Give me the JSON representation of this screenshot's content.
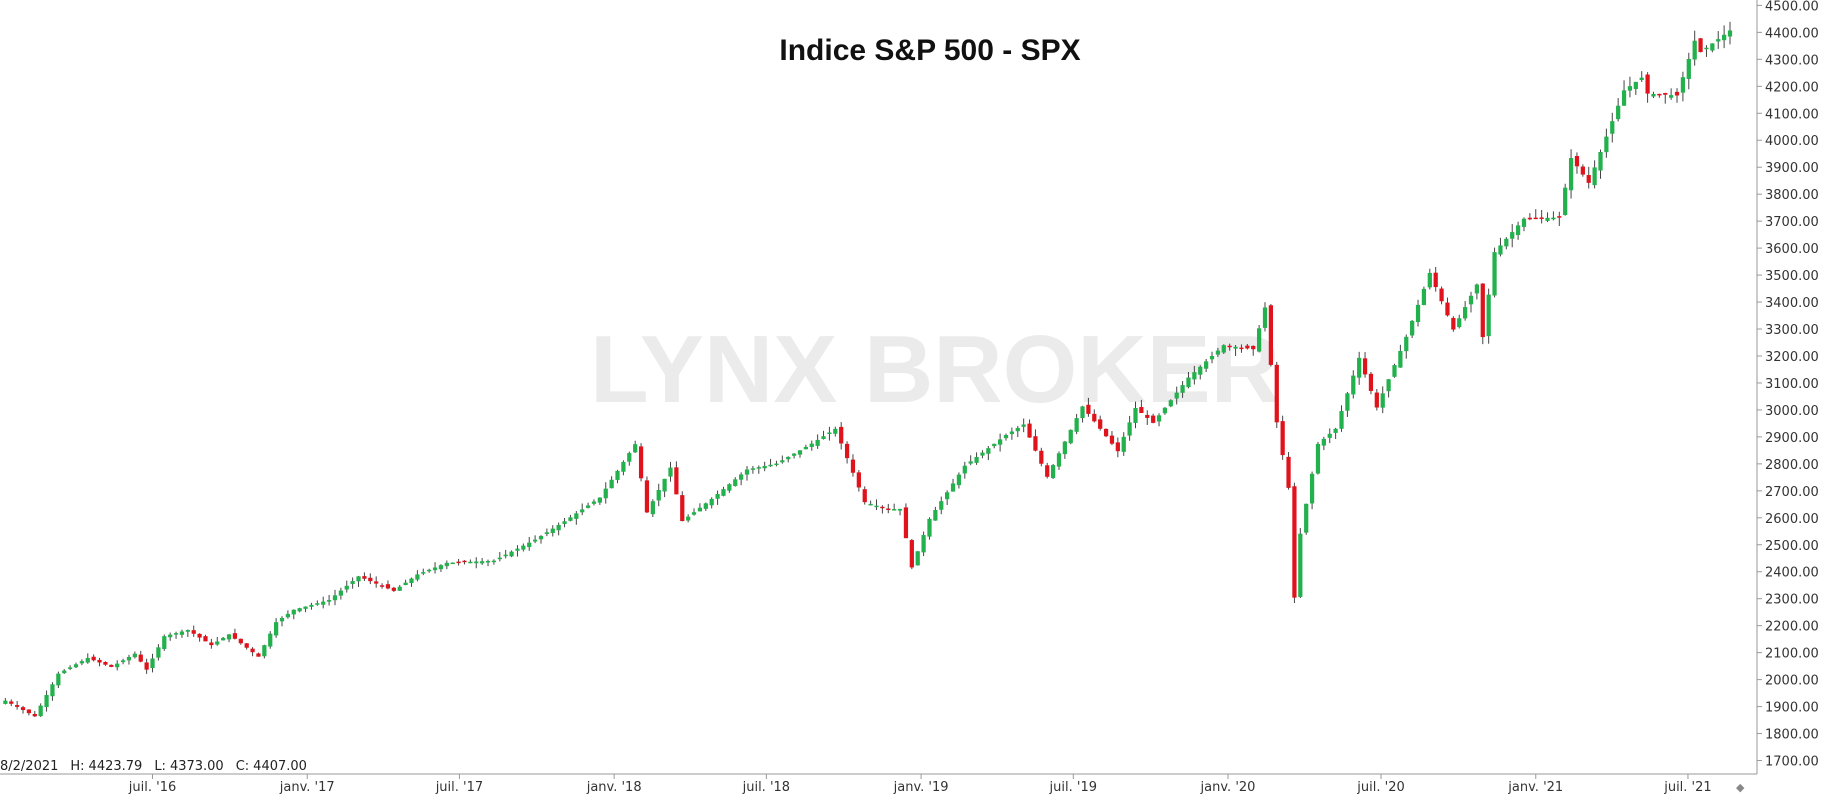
{
  "chart_data": {
    "type": "candlestick",
    "title": "Indice S&P 500 - SPX",
    "watermark": "LYNX BROKER",
    "info": {
      "date": "8/2/2021",
      "high_label": "H:",
      "high": "4423.79",
      "low_label": "L:",
      "low": "4373.00",
      "close_label": "C:",
      "close": "4407.00"
    },
    "ylim": [
      1650,
      4520
    ],
    "y_ticks": [
      "1700.00",
      "1800.00",
      "1900.00",
      "2000.00",
      "2100.00",
      "2200.00",
      "2300.00",
      "2400.00",
      "2500.00",
      "2600.00",
      "2700.00",
      "2800.00",
      "2900.00",
      "3000.00",
      "3100.00",
      "3200.00",
      "3300.00",
      "3400.00",
      "3500.00",
      "3600.00",
      "3700.00",
      "3800.00",
      "3900.00",
      "4000.00",
      "4100.00",
      "4200.00",
      "4300.00",
      "4400.00",
      "4500.00"
    ],
    "x_range": [
      "2016-01-04",
      "2021-08-20"
    ],
    "x_ticks": [
      {
        "date": "2016-07-01",
        "label": "juil. '16"
      },
      {
        "date": "2017-01-01",
        "label": "janv. '17"
      },
      {
        "date": "2017-07-01",
        "label": "juil. '17"
      },
      {
        "date": "2018-01-01",
        "label": "janv. '18"
      },
      {
        "date": "2018-07-01",
        "label": "juil. '18"
      },
      {
        "date": "2019-01-01",
        "label": "janv. '19"
      },
      {
        "date": "2019-07-01",
        "label": "juil. '19"
      },
      {
        "date": "2020-01-01",
        "label": "janv. '20"
      },
      {
        "date": "2020-07-01",
        "label": "juil. '20"
      },
      {
        "date": "2021-01-01",
        "label": "janv. '21"
      },
      {
        "date": "2021-07-01",
        "label": "juil. '21"
      }
    ],
    "colors": {
      "up": "#22b14c",
      "down": "#e0131c",
      "axis": "#999999",
      "wick": "#444444"
    },
    "weekly_close": [
      [
        "2016-01-08",
        1922
      ],
      [
        "2016-02-12",
        1864
      ],
      [
        "2016-03-11",
        2022
      ],
      [
        "2016-04-15",
        2080
      ],
      [
        "2016-05-13",
        2047
      ],
      [
        "2016-06-10",
        2096
      ],
      [
        "2016-06-24",
        2037
      ],
      [
        "2016-07-15",
        2161
      ],
      [
        "2016-08-12",
        2184
      ],
      [
        "2016-09-09",
        2128
      ],
      [
        "2016-09-30",
        2168
      ],
      [
        "2016-11-04",
        2085
      ],
      [
        "2016-11-25",
        2213
      ],
      [
        "2016-12-16",
        2259
      ],
      [
        "2017-01-27",
        2295
      ],
      [
        "2017-03-03",
        2383
      ],
      [
        "2017-04-14",
        2329
      ],
      [
        "2017-05-12",
        2390
      ],
      [
        "2017-06-16",
        2433
      ],
      [
        "2017-08-11",
        2441
      ],
      [
        "2017-09-29",
        2519
      ],
      [
        "2017-11-03",
        2587
      ],
      [
        "2017-12-15",
        2675
      ],
      [
        "2018-01-26",
        2873
      ],
      [
        "2018-02-09",
        2620
      ],
      [
        "2018-03-09",
        2786
      ],
      [
        "2018-03-23",
        2588
      ],
      [
        "2018-04-27",
        2670
      ],
      [
        "2018-06-08",
        2779
      ],
      [
        "2018-07-13",
        2801
      ],
      [
        "2018-08-24",
        2875
      ],
      [
        "2018-09-21",
        2930
      ],
      [
        "2018-10-12",
        2767
      ],
      [
        "2018-10-26",
        2658
      ],
      [
        "2018-11-23",
        2632
      ],
      [
        "2018-12-07",
        2633
      ],
      [
        "2018-12-21",
        2416
      ],
      [
        "2019-01-11",
        2596
      ],
      [
        "2019-02-22",
        2793
      ],
      [
        "2019-04-12",
        2907
      ],
      [
        "2019-05-03",
        2946
      ],
      [
        "2019-05-31",
        2752
      ],
      [
        "2019-07-12",
        3013
      ],
      [
        "2019-08-23",
        2847
      ],
      [
        "2019-09-13",
        3007
      ],
      [
        "2019-10-04",
        2952
      ],
      [
        "2019-11-15",
        3120
      ],
      [
        "2019-12-27",
        3240
      ],
      [
        "2020-01-31",
        3225
      ],
      [
        "2020-02-14",
        3380
      ],
      [
        "2020-02-28",
        2954
      ],
      [
        "2020-03-13",
        2711
      ],
      [
        "2020-03-20",
        2304
      ],
      [
        "2020-03-27",
        2541
      ],
      [
        "2020-04-17",
        2874
      ],
      [
        "2020-05-08",
        2930
      ],
      [
        "2020-06-05",
        3193
      ],
      [
        "2020-06-26",
        3009
      ],
      [
        "2020-07-31",
        3271
      ],
      [
        "2020-08-28",
        3508
      ],
      [
        "2020-09-25",
        3298
      ],
      [
        "2020-10-23",
        3465
      ],
      [
        "2020-10-30",
        3270
      ],
      [
        "2020-11-13",
        3585
      ],
      [
        "2020-12-18",
        3709
      ],
      [
        "2021-01-29",
        3714
      ],
      [
        "2021-02-12",
        3934
      ],
      [
        "2021-03-05",
        3842
      ],
      [
        "2021-04-16",
        4185
      ],
      [
        "2021-05-07",
        4232
      ],
      [
        "2021-05-14",
        4173
      ],
      [
        "2021-06-18",
        4166
      ],
      [
        "2021-07-09",
        4369
      ],
      [
        "2021-07-16",
        4327
      ],
      [
        "2021-08-20",
        4407
      ]
    ]
  }
}
